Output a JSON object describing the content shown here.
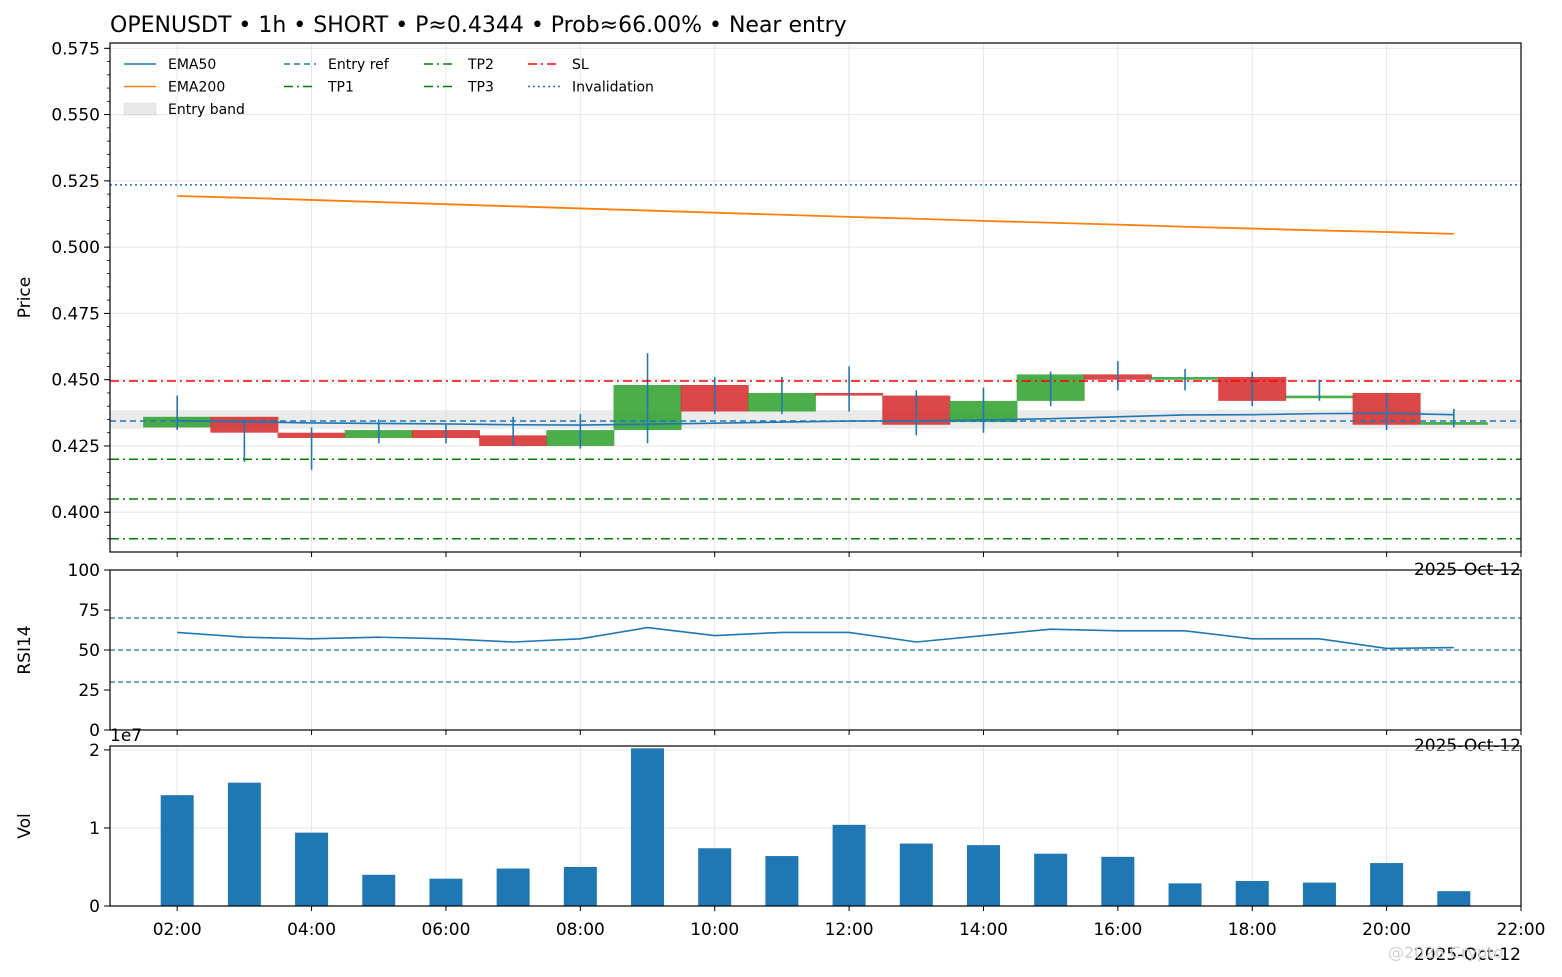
{
  "chart_data": [
    {
      "type": "candlestick",
      "title": "OPENUSDT • 1h • SHORT • P≈0.4344 • Prob≈66.00% • Near entry",
      "ylabel": "Price",
      "ylim": [
        0.385,
        0.577
      ],
      "yticks": [
        0.4,
        0.425,
        0.45,
        0.475,
        0.5,
        0.525,
        0.55,
        0.575
      ],
      "ytick_labels": [
        "0.400",
        "0.425",
        "0.450",
        "0.475",
        "0.500",
        "0.525",
        "0.550",
        "0.575"
      ],
      "x_date_label": "2025-Oct-12",
      "legend": [
        {
          "label": "EMA50",
          "style": "solid",
          "color": "#1f77b4"
        },
        {
          "label": "EMA200",
          "style": "solid",
          "color": "#ff7f0e"
        },
        {
          "label": "Entry band",
          "style": "band",
          "color": "#d3d3d3"
        },
        {
          "label": "Entry ref",
          "style": "dashed",
          "color": "#1f77b4"
        },
        {
          "label": "TP1",
          "style": "dashdot",
          "color": "#008000"
        },
        {
          "label": "TP2",
          "style": "dashdot",
          "color": "#008000"
        },
        {
          "label": "TP3",
          "style": "dashdot",
          "color": "#008000"
        },
        {
          "label": "SL",
          "style": "dashdot",
          "color": "#ff0000"
        },
        {
          "label": "Invalidation",
          "style": "dotted",
          "color": "#1f77b4"
        }
      ],
      "legend_position": "top-left",
      "levels": {
        "entry_ref": 0.4344,
        "entry_band": [
          0.4315,
          0.4385
        ],
        "tp1": 0.42,
        "tp2": 0.405,
        "tp3": 0.39,
        "sl": 0.4495,
        "invalidation": 0.5235
      },
      "hours": [
        2,
        3,
        4,
        5,
        6,
        7,
        8,
        9,
        10,
        11,
        12,
        13,
        14,
        15,
        16,
        17,
        18,
        19,
        20,
        21
      ],
      "ohlc": [
        {
          "o": 0.432,
          "h": 0.444,
          "l": 0.431,
          "c": 0.436
        },
        {
          "o": 0.436,
          "h": 0.435,
          "l": 0.419,
          "c": 0.43
        },
        {
          "o": 0.43,
          "h": 0.432,
          "l": 0.416,
          "c": 0.428
        },
        {
          "o": 0.428,
          "h": 0.435,
          "l": 0.426,
          "c": 0.431
        },
        {
          "o": 0.431,
          "h": 0.433,
          "l": 0.426,
          "c": 0.428
        },
        {
          "o": 0.429,
          "h": 0.436,
          "l": 0.425,
          "c": 0.425
        },
        {
          "o": 0.425,
          "h": 0.437,
          "l": 0.424,
          "c": 0.431
        },
        {
          "o": 0.431,
          "h": 0.46,
          "l": 0.426,
          "c": 0.448
        },
        {
          "o": 0.448,
          "h": 0.451,
          "l": 0.437,
          "c": 0.438
        },
        {
          "o": 0.438,
          "h": 0.451,
          "l": 0.437,
          "c": 0.445
        },
        {
          "o": 0.445,
          "h": 0.455,
          "l": 0.438,
          "c": 0.444
        },
        {
          "o": 0.444,
          "h": 0.446,
          "l": 0.429,
          "c": 0.433
        },
        {
          "o": 0.434,
          "h": 0.447,
          "l": 0.43,
          "c": 0.442
        },
        {
          "o": 0.442,
          "h": 0.453,
          "l": 0.44,
          "c": 0.452
        },
        {
          "o": 0.452,
          "h": 0.457,
          "l": 0.446,
          "c": 0.45
        },
        {
          "o": 0.45,
          "h": 0.454,
          "l": 0.446,
          "c": 0.451
        },
        {
          "o": 0.451,
          "h": 0.453,
          "l": 0.44,
          "c": 0.442
        },
        {
          "o": 0.443,
          "h": 0.45,
          "l": 0.442,
          "c": 0.444
        },
        {
          "o": 0.445,
          "h": 0.445,
          "l": 0.431,
          "c": 0.433
        },
        {
          "o": 0.433,
          "h": 0.439,
          "l": 0.432,
          "c": 0.434
        }
      ],
      "ema50": [
        0.4345,
        0.4341,
        0.4337,
        0.4335,
        0.4333,
        0.433,
        0.4329,
        0.4332,
        0.4336,
        0.434,
        0.4344,
        0.4345,
        0.4348,
        0.4353,
        0.436,
        0.4367,
        0.4368,
        0.4372,
        0.4373,
        0.4368
      ],
      "ema200": [
        0.5193,
        0.5186,
        0.5178,
        0.517,
        0.5162,
        0.5154,
        0.5146,
        0.5138,
        0.513,
        0.5122,
        0.5114,
        0.5107,
        0.5099,
        0.5092,
        0.5085,
        0.5077,
        0.507,
        0.5063,
        0.5057,
        0.505
      ]
    },
    {
      "type": "line",
      "ylabel": "RSI14",
      "ylim": [
        0,
        100
      ],
      "yticks": [
        0,
        25,
        50,
        75,
        100
      ],
      "x_date_label": "2025-Oct-12",
      "reference_lines": [
        30,
        50,
        70
      ],
      "hours": [
        2,
        3,
        4,
        5,
        6,
        7,
        8,
        9,
        10,
        11,
        12,
        13,
        14,
        15,
        16,
        17,
        18,
        19,
        20,
        21
      ],
      "values": [
        61,
        58,
        57,
        58,
        57,
        55,
        57,
        64,
        59,
        61,
        61,
        55,
        59,
        63,
        62,
        62,
        57,
        57,
        51,
        51.5
      ]
    },
    {
      "type": "bar",
      "ylabel": "Vol",
      "scale_label": "1e7",
      "ylim": [
        0,
        2.05
      ],
      "yticks": [
        0,
        1,
        2
      ],
      "xlim_hours": [
        1,
        22
      ],
      "xticks": [
        "02:00",
        "04:00",
        "06:00",
        "08:00",
        "10:00",
        "12:00",
        "14:00",
        "16:00",
        "18:00",
        "20:00",
        "22:00"
      ],
      "x_date_label": "2025-Oct-12",
      "hours": [
        2,
        3,
        4,
        5,
        6,
        7,
        8,
        9,
        10,
        11,
        12,
        13,
        14,
        15,
        16,
        17,
        18,
        19,
        20,
        21
      ],
      "values": [
        1.42,
        1.58,
        0.94,
        0.4,
        0.35,
        0.48,
        0.5,
        2.02,
        0.74,
        0.64,
        1.04,
        0.8,
        0.78,
        0.67,
        0.63,
        0.29,
        0.32,
        0.3,
        0.55,
        0.19
      ]
    }
  ],
  "watermark": "@2026 Crypto"
}
